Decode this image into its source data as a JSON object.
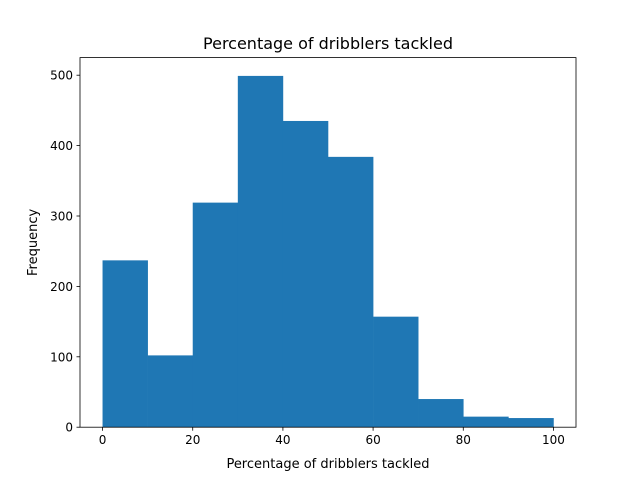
{
  "chart_data": {
    "type": "bar",
    "title": "Percentage of dribblers tackled",
    "xlabel": "Percentage of dribblers tackled",
    "ylabel": "Frequency",
    "bin_edges": [
      0,
      10,
      20,
      30,
      40,
      50,
      60,
      70,
      80,
      90,
      100
    ],
    "values": [
      237,
      102,
      319,
      499,
      435,
      384,
      157,
      40,
      15,
      13
    ],
    "xlim": [
      -5,
      105
    ],
    "ylim": [
      0,
      525
    ],
    "xticks": [
      0,
      20,
      40,
      60,
      80,
      100
    ],
    "yticks": [
      0,
      100,
      200,
      300,
      400,
      500
    ],
    "bar_color": "#1f77b4",
    "grid": false
  }
}
